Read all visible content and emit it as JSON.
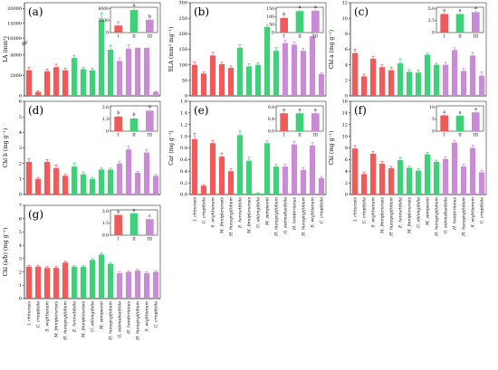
{
  "colors": {
    "group_I": "#f25a5a",
    "group_II": "#3fd07a",
    "group_III": "#c98ad6",
    "axis": "#000000"
  },
  "species": [
    "I. chinensis",
    "C. crispifolia",
    "S. wightianum",
    "M. finniplenensis",
    "H. hunsyngifolium",
    "E. hennetifolia",
    "M. finniplenensis",
    "G. oblongifolia",
    "M. sampsonii",
    "H. hunsyngifolium",
    "G. subnudusifolia",
    "H. honderianus",
    "H. hunsyngifolium",
    "S. wightianum",
    "C. crispifolia"
  ],
  "species_groups": [
    "I",
    "I",
    "I",
    "I",
    "I",
    "II",
    "II",
    "II",
    "II",
    "II",
    "III",
    "III",
    "III",
    "III",
    "III"
  ],
  "chart_data": [
    {
      "id": "a",
      "type": "bar",
      "label": "(a)",
      "ylabel": "LA (mm²)",
      "yticks": [
        "0",
        "2000",
        "4000",
        "10000",
        "15000",
        "20000"
      ],
      "values": [
        2500,
        400,
        2400,
        2800,
        2500,
        3700,
        2600,
        2500,
        16000,
        4500,
        3400,
        4600,
        4700,
        4700,
        400
      ],
      "errors": [
        300,
        100,
        200,
        300,
        200,
        250,
        200,
        200,
        2500,
        400,
        300,
        400,
        400,
        400,
        50
      ],
      "broken_axis": true,
      "inset": {
        "groups": [
          "I",
          "II",
          "III"
        ],
        "values": [
          1800,
          5800,
          3300
        ],
        "errors": [
          300,
          800,
          300
        ],
        "letters": [
          "c",
          "a",
          "b"
        ],
        "ticks": [
          "0",
          "3000",
          "6000"
        ],
        "ymax": 6500
      }
    },
    {
      "id": "b",
      "type": "bar",
      "label": "(b)",
      "ylabel": "SLA (mm² mg⁻¹)",
      "yticks": [
        "0",
        "50",
        "100",
        "150",
        "200",
        "250",
        "300"
      ],
      "ymax": 300,
      "values": [
        100,
        72,
        130,
        102,
        90,
        155,
        95,
        100,
        222,
        145,
        170,
        165,
        145,
        192,
        70
      ],
      "errors": [
        10,
        5,
        10,
        6,
        6,
        10,
        8,
        6,
        8,
        10,
        10,
        8,
        8,
        12,
        5
      ],
      "inset": {
        "groups": [
          "I",
          "II",
          "III"
        ],
        "values": [
          95,
          140,
          142
        ],
        "errors": [
          10,
          12,
          10
        ],
        "letters": [
          "b",
          "a",
          "a"
        ],
        "ticks": [
          "0",
          "50",
          "100",
          "150"
        ],
        "ymax": 165
      }
    },
    {
      "id": "c",
      "type": "bar",
      "label": "(c)",
      "ylabel": "Chl a (mg g⁻¹)",
      "yticks": [
        "0",
        "2",
        "4",
        "6",
        "8",
        "10",
        "12"
      ],
      "ymax": 12,
      "values": [
        5.5,
        2.5,
        4.8,
        3.7,
        3.3,
        4.2,
        3.1,
        3.0,
        5.3,
        4.0,
        4.0,
        5.9,
        3.2,
        5.2,
        2.6
      ],
      "errors": [
        0.5,
        0.3,
        0.3,
        0.3,
        0.4,
        0.6,
        0.3,
        0.3,
        0.2,
        0.2,
        0.3,
        0.3,
        0.3,
        0.4,
        0.5
      ],
      "inset": {
        "groups": [
          "I",
          "II",
          "III"
        ],
        "values": [
          3.8,
          3.8,
          4.2
        ],
        "errors": [
          0.3,
          0.3,
          0.4
        ],
        "letters": [
          "a",
          "a",
          "a"
        ],
        "ticks": [
          "0",
          "2.5",
          "5.0"
        ],
        "ymax": 5.2
      }
    },
    {
      "id": "d",
      "type": "bar",
      "label": "(d)",
      "ylabel": "Chl b (mg g⁻¹)",
      "yticks": [
        "0",
        "1",
        "2",
        "3",
        "4",
        "5",
        "6"
      ],
      "ymax": 6,
      "values": [
        2.1,
        1.0,
        2.1,
        1.7,
        1.2,
        1.8,
        1.3,
        1.0,
        1.6,
        1.6,
        2.0,
        2.9,
        1.4,
        2.7,
        1.2
      ],
      "errors": [
        0.2,
        0.1,
        0.15,
        0.2,
        0.1,
        0.2,
        0.15,
        0.1,
        0.1,
        0.1,
        0.15,
        0.2,
        0.1,
        0.2,
        0.1
      ],
      "inset": {
        "groups": [
          "I",
          "II",
          "III"
        ],
        "values": [
          1.5,
          1.3,
          2.1
        ],
        "errors": [
          0.15,
          0.15,
          0.2
        ],
        "letters": [
          "b",
          "b",
          "a"
        ],
        "ticks": [
          "0",
          "1.3",
          "2.6"
        ],
        "ymax": 2.6
      }
    },
    {
      "id": "e",
      "type": "bar",
      "label": "(e)",
      "ylabel": "Car (mg g⁻¹)",
      "yticks": [
        "0.0",
        "0.2",
        "0.4",
        "0.6",
        "0.8",
        "1.0",
        "1.2",
        "1.4",
        "1.6"
      ],
      "ymax": 1.6,
      "values": [
        0.95,
        0.15,
        0.88,
        0.65,
        0.4,
        1.02,
        0.58,
        0.02,
        0.88,
        0.48,
        0.48,
        0.86,
        0.42,
        0.84,
        0.28
      ],
      "errors": [
        0.1,
        0.02,
        0.05,
        0.06,
        0.04,
        0.08,
        0.06,
        0.01,
        0.04,
        0.04,
        0.04,
        0.05,
        0.04,
        0.05,
        0.03
      ],
      "inset": {
        "groups": [
          "I",
          "II",
          "III"
        ],
        "values": [
          0.6,
          0.6,
          0.6
        ],
        "errors": [
          0.05,
          0.05,
          0.05
        ],
        "letters": [
          "a",
          "a",
          "a"
        ],
        "ticks": [
          "0.0",
          "0.4",
          "0.8"
        ],
        "ymax": 0.85
      }
    },
    {
      "id": "f",
      "type": "bar",
      "label": "(f)",
      "ylabel": "Chl (mg g⁻¹)",
      "yticks": [
        "0",
        "2",
        "4",
        "6",
        "8",
        "10",
        "12",
        "14",
        "16"
      ],
      "ymax": 16,
      "values": [
        7.9,
        3.5,
        7.0,
        5.3,
        4.5,
        5.9,
        4.6,
        4.1,
        6.9,
        5.6,
        6.1,
        8.9,
        4.8,
        8.0,
        3.8
      ],
      "errors": [
        0.5,
        0.3,
        0.4,
        0.4,
        0.3,
        0.4,
        0.3,
        0.3,
        0.3,
        0.3,
        0.4,
        0.4,
        0.4,
        0.5,
        0.3
      ],
      "inset": {
        "groups": [
          "I",
          "II",
          "III"
        ],
        "values": [
          5.3,
          5.2,
          6.3
        ],
        "errors": [
          0.4,
          0.4,
          0.5
        ],
        "letters": [
          "a",
          "a",
          "a"
        ],
        "ticks": [
          "0",
          "5",
          "10"
        ],
        "ymax": 8.5
      }
    },
    {
      "id": "g",
      "type": "bar",
      "label": "(g)",
      "ylabel": "Chl (a/b) (mg g⁻¹)",
      "yticks": [
        "0",
        "1",
        "2",
        "3",
        "4",
        "5",
        "6",
        "7"
      ],
      "ymax": 7,
      "values": [
        2.4,
        2.4,
        2.3,
        2.3,
        2.7,
        2.4,
        2.4,
        2.9,
        3.3,
        2.6,
        1.9,
        2.0,
        2.1,
        1.9,
        2.0
      ],
      "errors": [
        0.1,
        0.1,
        0.1,
        0.1,
        0.1,
        0.1,
        0.1,
        0.1,
        0.1,
        0.1,
        0.1,
        0.1,
        0.1,
        0.1,
        0.1
      ],
      "inset": {
        "groups": [
          "I",
          "II",
          "III"
        ],
        "values": [
          2.4,
          2.6,
          1.9
        ],
        "errors": [
          0.1,
          0.1,
          0.1
        ],
        "letters": [
          "b",
          "a",
          "c"
        ],
        "ticks": [
          "0.0",
          "1.5",
          "3.0"
        ],
        "ymax": 3.0
      }
    }
  ]
}
